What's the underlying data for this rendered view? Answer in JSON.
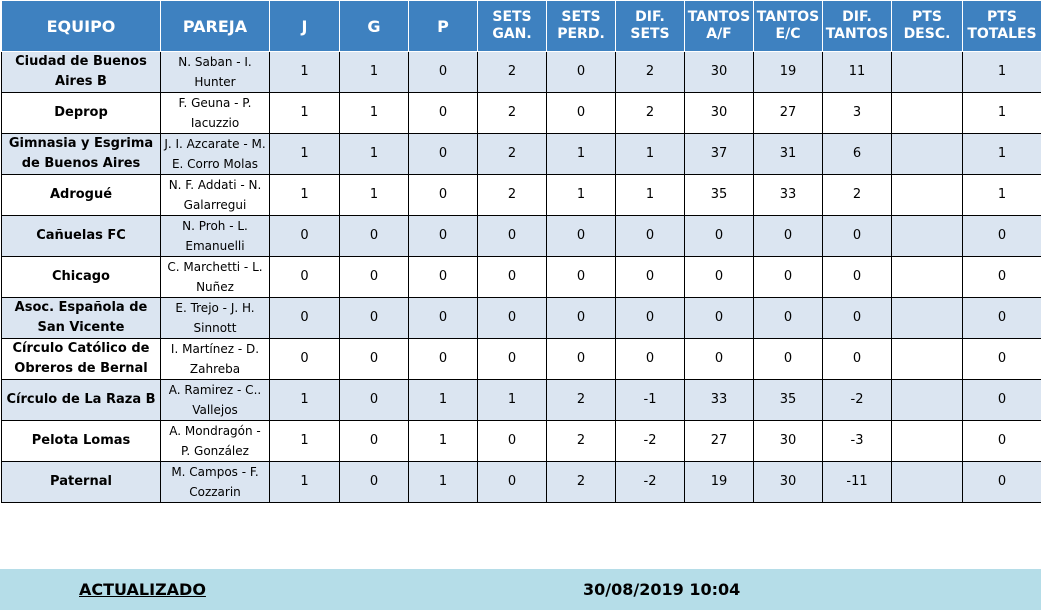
{
  "headers": [
    "EQUIPO",
    "PAREJA",
    "J",
    "G",
    "P",
    "SETS GAN.",
    "SETS PERD.",
    "DIF. SETS",
    "TANTOS A/F",
    "TANTOS E/C",
    "DIF. TANTOS",
    "PTS DESC.",
    "PTS TOTALES"
  ],
  "rows": [
    {
      "team": "Ciudad de Buenos Aires B",
      "pair": "N. Saban - I. Hunter",
      "j": "1",
      "g": "1",
      "p": "0",
      "sets_gan": "2",
      "sets_perd": "0",
      "dif_sets": "2",
      "tantos_af": "30",
      "tantos_ec": "19",
      "dif_tantos": "11",
      "pts_desc": "",
      "pts_totales": "1"
    },
    {
      "team": "Deprop",
      "pair": "F. Geuna - P. Iacuzzio",
      "j": "1",
      "g": "1",
      "p": "0",
      "sets_gan": "2",
      "sets_perd": "0",
      "dif_sets": "2",
      "tantos_af": "30",
      "tantos_ec": "27",
      "dif_tantos": "3",
      "pts_desc": "",
      "pts_totales": "1"
    },
    {
      "team": "Gimnasia y Esgrima de Buenos Aires",
      "pair": "J. I. Azcarate - M. E. Corro Molas",
      "j": "1",
      "g": "1",
      "p": "0",
      "sets_gan": "2",
      "sets_perd": "1",
      "dif_sets": "1",
      "tantos_af": "37",
      "tantos_ec": "31",
      "dif_tantos": "6",
      "pts_desc": "",
      "pts_totales": "1"
    },
    {
      "team": "Adrogué",
      "pair": "N. F. Addati - N. Galarregui",
      "j": "1",
      "g": "1",
      "p": "0",
      "sets_gan": "2",
      "sets_perd": "1",
      "dif_sets": "1",
      "tantos_af": "35",
      "tantos_ec": "33",
      "dif_tantos": "2",
      "pts_desc": "",
      "pts_totales": "1"
    },
    {
      "team": "Cañuelas FC",
      "pair": "N. Proh - L. Emanuelli",
      "j": "0",
      "g": "0",
      "p": "0",
      "sets_gan": "0",
      "sets_perd": "0",
      "dif_sets": "0",
      "tantos_af": "0",
      "tantos_ec": "0",
      "dif_tantos": "0",
      "pts_desc": "",
      "pts_totales": "0"
    },
    {
      "team": "Chicago",
      "pair": "C. Marchetti - L. Nuñez",
      "j": "0",
      "g": "0",
      "p": "0",
      "sets_gan": "0",
      "sets_perd": "0",
      "dif_sets": "0",
      "tantos_af": "0",
      "tantos_ec": "0",
      "dif_tantos": "0",
      "pts_desc": "",
      "pts_totales": "0"
    },
    {
      "team": "Asoc. Española de San Vicente",
      "pair": "E. Trejo - J. H. Sinnott",
      "j": "0",
      "g": "0",
      "p": "0",
      "sets_gan": "0",
      "sets_perd": "0",
      "dif_sets": "0",
      "tantos_af": "0",
      "tantos_ec": "0",
      "dif_tantos": "0",
      "pts_desc": "",
      "pts_totales": "0"
    },
    {
      "team": "Círculo Católico de Obreros de Bernal",
      "pair": "I. Martínez - D. Zahreba",
      "j": "0",
      "g": "0",
      "p": "0",
      "sets_gan": "0",
      "sets_perd": "0",
      "dif_sets": "0",
      "tantos_af": "0",
      "tantos_ec": "0",
      "dif_tantos": "0",
      "pts_desc": "",
      "pts_totales": "0"
    },
    {
      "team": "Círculo de La Raza B",
      "pair": "A. Ramirez - C.. Vallejos",
      "j": "1",
      "g": "0",
      "p": "1",
      "sets_gan": "1",
      "sets_perd": "2",
      "dif_sets": "-1",
      "tantos_af": "33",
      "tantos_ec": "35",
      "dif_tantos": "-2",
      "pts_desc": "",
      "pts_totales": "0"
    },
    {
      "team": "Pelota Lomas",
      "pair": "A. Mondragón - P. González",
      "j": "1",
      "g": "0",
      "p": "1",
      "sets_gan": "0",
      "sets_perd": "2",
      "dif_sets": "-2",
      "tantos_af": "27",
      "tantos_ec": "30",
      "dif_tantos": "-3",
      "pts_desc": "",
      "pts_totales": "0"
    },
    {
      "team": "Paternal",
      "pair": "M. Campos - F. Cozzarin",
      "j": "1",
      "g": "0",
      "p": "1",
      "sets_gan": "0",
      "sets_perd": "2",
      "dif_sets": "-2",
      "tantos_af": "19",
      "tantos_ec": "30",
      "dif_tantos": "-11",
      "pts_desc": "",
      "pts_totales": "0"
    }
  ],
  "footer": {
    "label": "ACTUALIZADO",
    "timestamp": "30/08/2019 10:04"
  },
  "colors": {
    "header_bg": "#3e81c0",
    "row_alt_bg": "#dbe5f1",
    "footer_bg": "#b5dde8"
  }
}
